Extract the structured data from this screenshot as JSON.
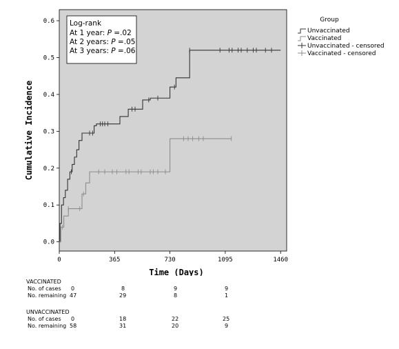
{
  "chart_data": {
    "type": "line",
    "step": true,
    "ylabel": "Cumulative Incidence",
    "xlabel": "Time (Days)",
    "xlim": [
      0,
      1500
    ],
    "ylim": [
      -0.025,
      0.63
    ],
    "x_ticks": [
      0,
      365,
      730,
      1095,
      1460
    ],
    "y_ticks": [
      0.0,
      0.1,
      0.2,
      0.3,
      0.4,
      0.5,
      0.6
    ],
    "y_tick_labels": [
      "0.0",
      "0.1",
      "0.2",
      "0.3",
      "0.4",
      "0.5",
      "0.6"
    ],
    "background": "#d3d3d3",
    "legend": {
      "title": "Group",
      "placement": "right",
      "entries": [
        "Unvaccinated",
        "Vaccinated",
        "Unvaccinated - censored",
        "Vaccinated - censored"
      ]
    },
    "annotation": {
      "title": "Log-rank",
      "lines": [
        {
          "prefix": "At 1 year: ",
          "p": "P",
          "value": " =.02"
        },
        {
          "prefix": "At 2 years: ",
          "p": "P",
          "value": " =.05"
        },
        {
          "prefix": "At 3 years: ",
          "p": "P",
          "value": " =.06"
        }
      ]
    },
    "series": [
      {
        "name": "Unvaccinated",
        "color": "#333333",
        "x": [
          0,
          5,
          15,
          28,
          40,
          55,
          70,
          85,
          100,
          115,
          130,
          150,
          230,
          245,
          400,
          455,
          550,
          600,
          730,
          770,
          860,
          1460
        ],
        "y": [
          0.0,
          0.05,
          0.1,
          0.12,
          0.14,
          0.17,
          0.19,
          0.21,
          0.23,
          0.25,
          0.275,
          0.295,
          0.315,
          0.32,
          0.34,
          0.36,
          0.385,
          0.39,
          0.42,
          0.445,
          0.52,
          0.52
        ],
        "censored_x": [
          80,
          200,
          220,
          270,
          285,
          300,
          320,
          480,
          500,
          590,
          650,
          760,
          860,
          1060,
          1120,
          1140,
          1180,
          1200,
          1240,
          1280,
          1300,
          1360,
          1400
        ]
      },
      {
        "name": "Vaccinated",
        "color": "#8c8c8c",
        "x": [
          0,
          10,
          30,
          60,
          90,
          150,
          175,
          200,
          245,
          730,
          1135
        ],
        "y": [
          0.0,
          0.04,
          0.07,
          0.09,
          0.09,
          0.13,
          0.16,
          0.19,
          0.19,
          0.28,
          0.28
        ],
        "censored_x": [
          20,
          60,
          135,
          160,
          260,
          300,
          350,
          380,
          440,
          460,
          520,
          540,
          600,
          620,
          650,
          700,
          820,
          850,
          880,
          920,
          950,
          1135
        ]
      }
    ]
  },
  "risk_table": {
    "groups": [
      {
        "name": "VACCINATED",
        "cases_label": "No. of cases",
        "remaining_label": "No. remaining",
        "cases": [
          "0",
          "8",
          "9",
          "9"
        ],
        "remaining": [
          "47",
          "29",
          "8",
          "1"
        ]
      },
      {
        "name": "UNVACCINATED",
        "cases_label": "No. of cases",
        "remaining_label": "No. remaining",
        "cases": [
          "0",
          "18",
          "22",
          "25"
        ],
        "remaining": [
          "58",
          "31",
          "20",
          "9"
        ]
      }
    ]
  }
}
